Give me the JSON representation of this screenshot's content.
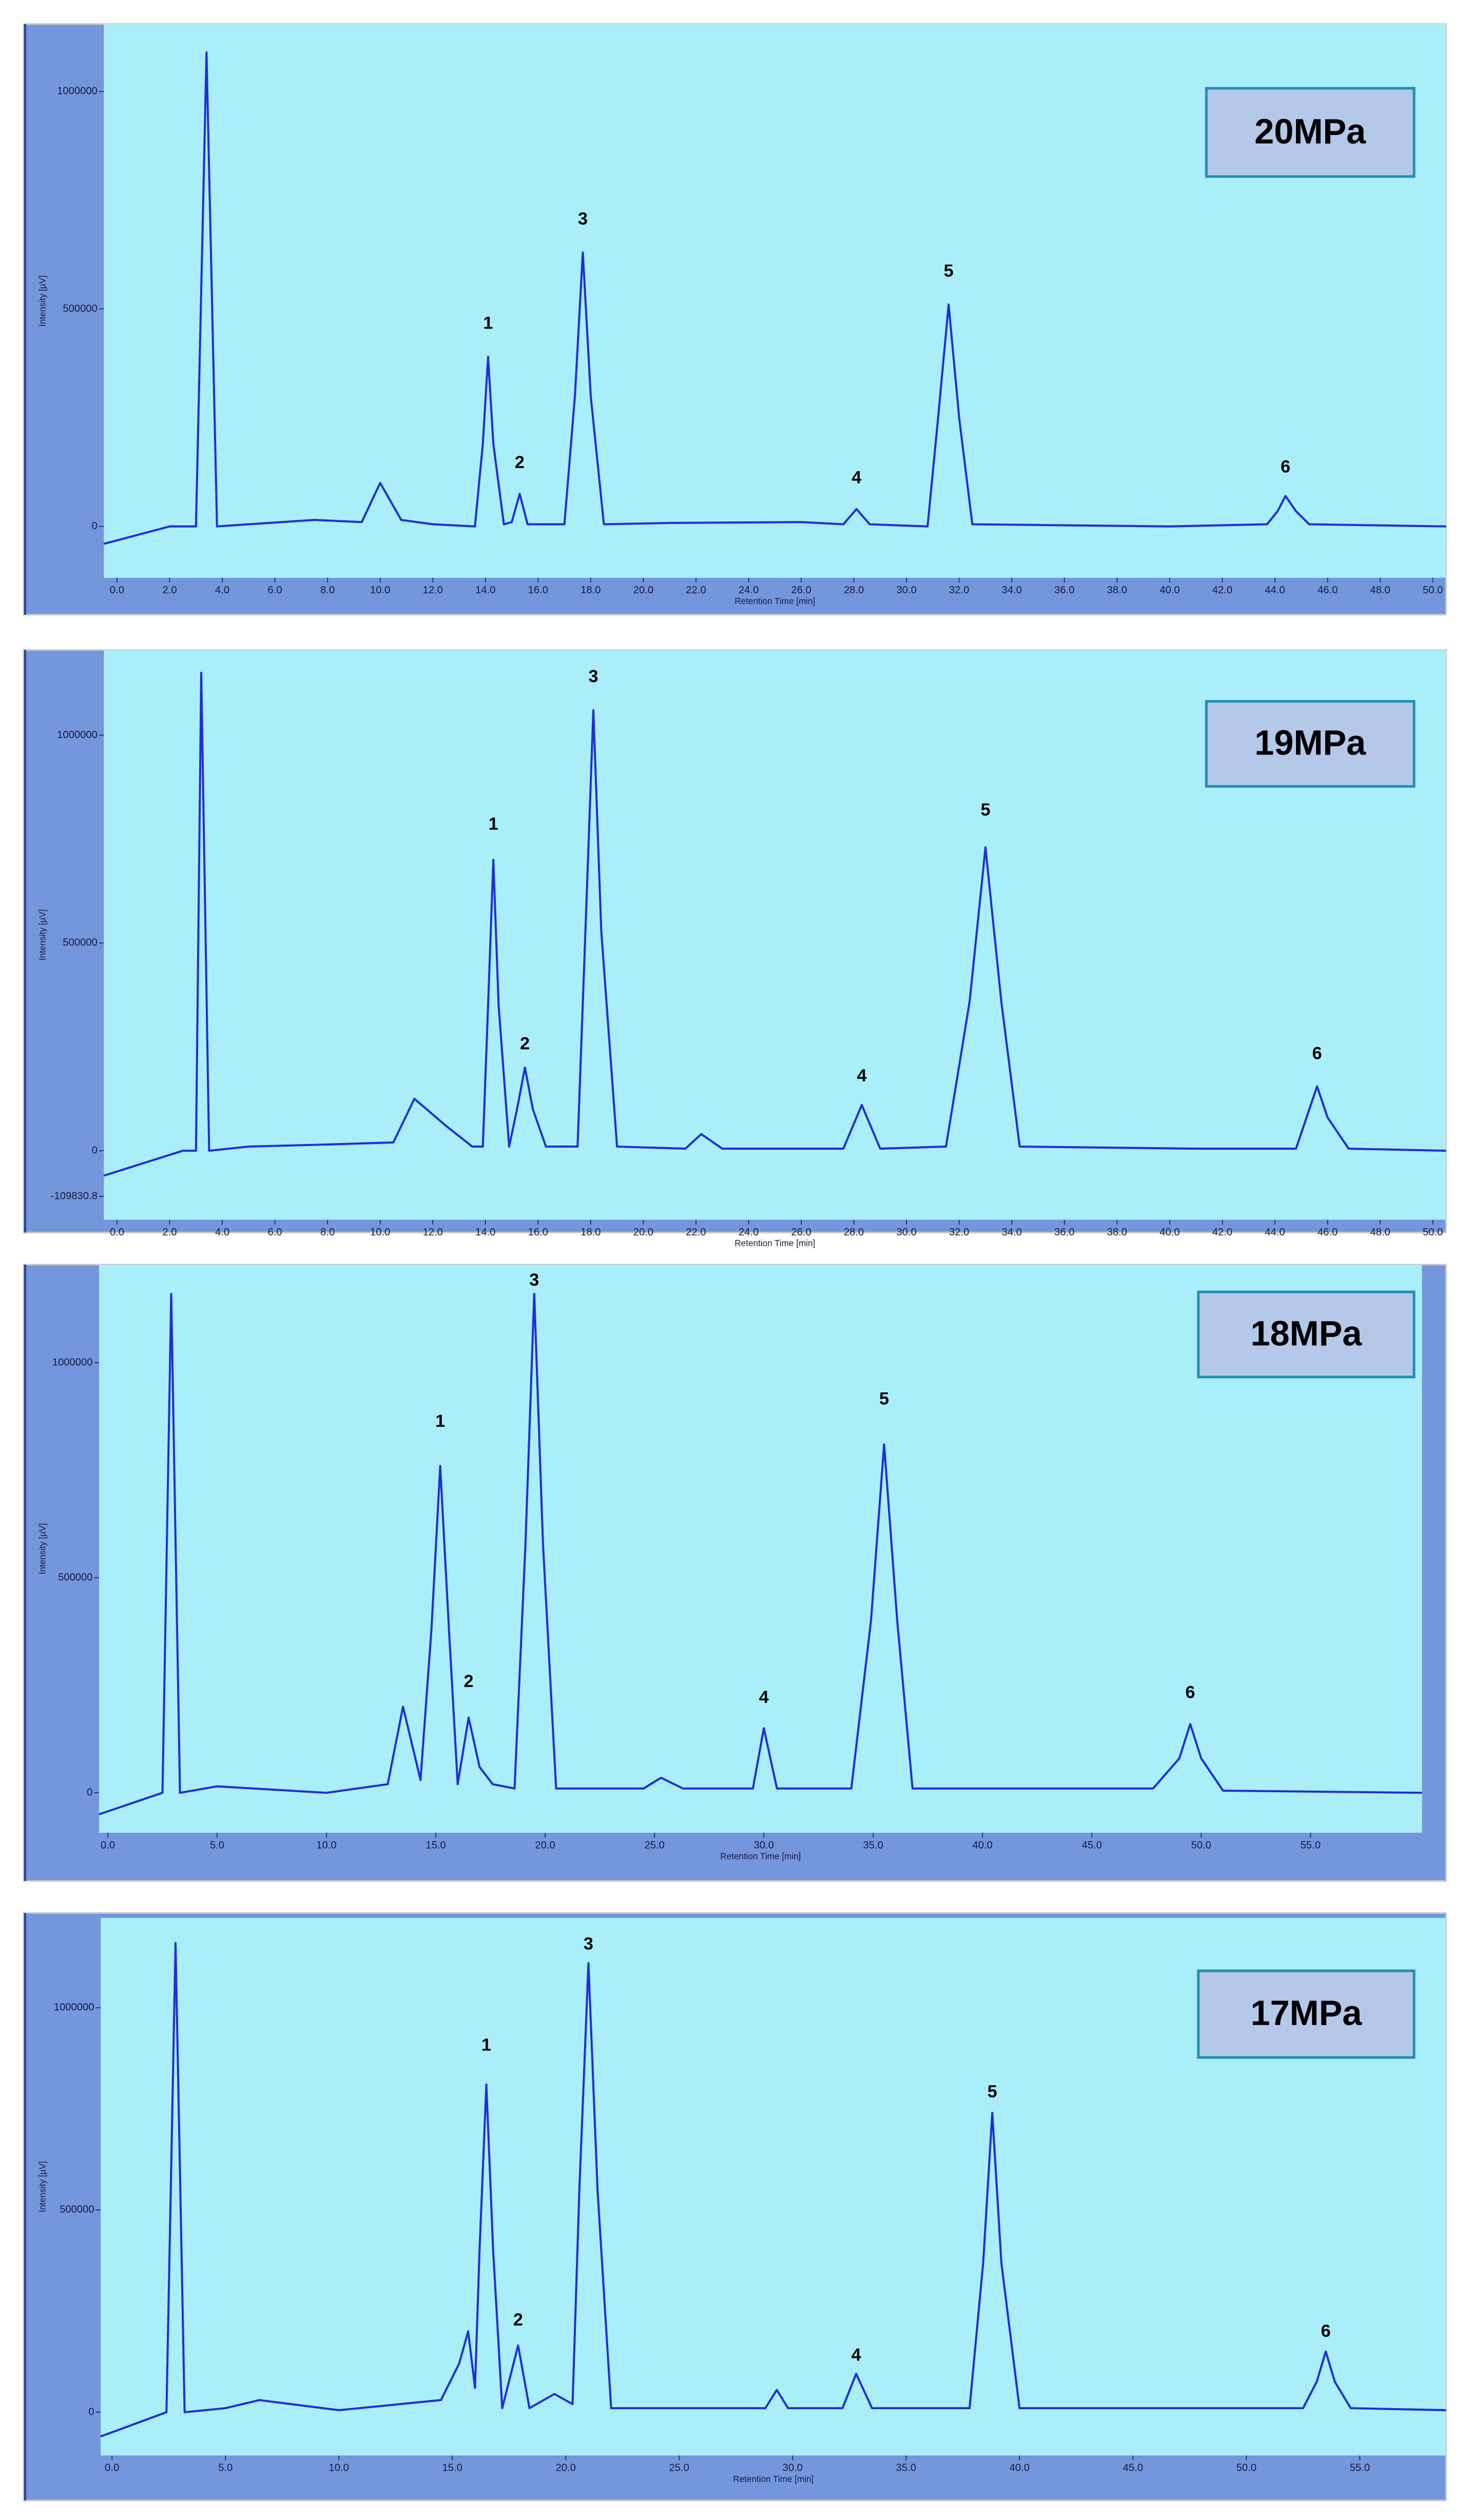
{
  "chart_data": [
    {
      "type": "line",
      "title": "20MPa",
      "xlabel": "Retention Time [min]",
      "ylabel": "Intensity [µV]",
      "color": "#1f2fd6",
      "xlim": [
        -0.5,
        50.5
      ],
      "ylim": [
        -118000,
        1155000
      ],
      "xticks": [
        {
          "value": 0,
          "label": "0.0"
        },
        {
          "value": 2,
          "label": "2.0"
        },
        {
          "value": 4,
          "label": "4.0"
        },
        {
          "value": 6,
          "label": "6.0"
        },
        {
          "value": 8,
          "label": "8.0"
        },
        {
          "value": 10,
          "label": "10.0"
        },
        {
          "value": 12,
          "label": "12.0"
        },
        {
          "value": 14,
          "label": "14.0"
        },
        {
          "value": 16,
          "label": "16.0"
        },
        {
          "value": 18,
          "label": "18.0"
        },
        {
          "value": 20,
          "label": "20.0"
        },
        {
          "value": 22,
          "label": "22.0"
        },
        {
          "value": 24,
          "label": "24.0"
        },
        {
          "value": 26,
          "label": "26.0"
        },
        {
          "value": 28,
          "label": "28.0"
        },
        {
          "value": 30,
          "label": "30.0"
        },
        {
          "value": 32,
          "label": "32.0"
        },
        {
          "value": 34,
          "label": "34.0"
        },
        {
          "value": 36,
          "label": "36.0"
        },
        {
          "value": 38,
          "label": "38.0"
        },
        {
          "value": 40,
          "label": "40.0"
        },
        {
          "value": 42,
          "label": "42.0"
        },
        {
          "value": 44,
          "label": "44.0"
        },
        {
          "value": 46,
          "label": "46.0"
        },
        {
          "value": 48,
          "label": "48.0"
        },
        {
          "value": 50,
          "label": "50.0"
        }
      ],
      "yticks": [
        0,
        500000,
        1000000
      ],
      "x": [
        -0.5,
        2.0,
        3.0,
        3.4,
        3.8,
        5.0,
        7.5,
        9.3,
        10.0,
        10.8,
        12.0,
        13.6,
        13.9,
        14.1,
        14.3,
        14.7,
        15.0,
        15.3,
        15.6,
        17.0,
        17.4,
        17.7,
        18.0,
        18.5,
        21.0,
        26.0,
        27.6,
        28.1,
        28.6,
        30.8,
        31.2,
        31.6,
        32.0,
        32.5,
        40.0,
        43.7,
        44.1,
        44.4,
        44.8,
        45.3,
        50.5
      ],
      "values": [
        -40000,
        0,
        0,
        1090000,
        0,
        5000,
        15000,
        10000,
        100000,
        15000,
        5000,
        0,
        190000,
        390000,
        190000,
        5000,
        10000,
        75000,
        5000,
        5000,
        300000,
        630000,
        300000,
        5000,
        8000,
        10000,
        5000,
        40000,
        5000,
        0,
        250000,
        510000,
        250000,
        5000,
        0,
        5000,
        35000,
        70000,
        35000,
        5000,
        0
      ],
      "annotations": [
        {
          "text": "1",
          "x": 14.1,
          "y": 465000
        },
        {
          "text": "2",
          "x": 15.3,
          "y": 145000
        },
        {
          "text": "3",
          "x": 17.7,
          "y": 705000
        },
        {
          "text": "4",
          "x": 28.1,
          "y": 110000
        },
        {
          "text": "5",
          "x": 31.6,
          "y": 585000
        },
        {
          "text": "6",
          "x": 44.4,
          "y": 135000
        }
      ]
    },
    {
      "type": "line",
      "title": "19MPa",
      "xlabel": "Retention Time [min]",
      "ylabel": "Intensity [µV]",
      "color": "#1f2fd6",
      "xlim": [
        -0.5,
        50.5
      ],
      "ylim": [
        -166000,
        1205000
      ],
      "xticks": [
        {
          "value": 0,
          "label": "0.0"
        },
        {
          "value": 2,
          "label": "2.0"
        },
        {
          "value": 4,
          "label": "4.0"
        },
        {
          "value": 6,
          "label": "6.0"
        },
        {
          "value": 8,
          "label": "8.0"
        },
        {
          "value": 10,
          "label": "10.0"
        },
        {
          "value": 12,
          "label": "12.0"
        },
        {
          "value": 14,
          "label": "14.0"
        },
        {
          "value": 16,
          "label": "16.0"
        },
        {
          "value": 18,
          "label": "18.0"
        },
        {
          "value": 20,
          "label": "20.0"
        },
        {
          "value": 22,
          "label": "22.0"
        },
        {
          "value": 24,
          "label": "24.0"
        },
        {
          "value": 26,
          "label": "26.0"
        },
        {
          "value": 28,
          "label": "28.0"
        },
        {
          "value": 30,
          "label": "30.0"
        },
        {
          "value": 32,
          "label": "32.0"
        },
        {
          "value": 34,
          "label": "34.0"
        },
        {
          "value": 36,
          "label": "36.0"
        },
        {
          "value": 38,
          "label": "38.0"
        },
        {
          "value": 40,
          "label": "40.0"
        },
        {
          "value": 42,
          "label": "42.0"
        },
        {
          "value": 44,
          "label": "44.0"
        },
        {
          "value": 46,
          "label": "46.0"
        },
        {
          "value": 48,
          "label": "48.0"
        },
        {
          "value": 50,
          "label": "50.0"
        }
      ],
      "yticks": [
        -109830.8,
        0,
        500000,
        1000000
      ],
      "x": [
        -0.5,
        2.5,
        3.0,
        3.2,
        3.5,
        5.0,
        8.0,
        10.5,
        11.3,
        12.5,
        13.5,
        13.9,
        14.1,
        14.3,
        14.5,
        14.9,
        15.2,
        15.5,
        15.8,
        16.3,
        17.5,
        17.8,
        18.1,
        18.4,
        19.0,
        21.6,
        22.2,
        23.0,
        27.6,
        28.3,
        29.0,
        31.5,
        32.4,
        33.0,
        33.6,
        34.3,
        41.0,
        44.8,
        45.2,
        45.6,
        46.0,
        46.8,
        50.5
      ],
      "values": [
        -60000,
        0,
        0,
        1150000,
        0,
        10000,
        15000,
        20000,
        125000,
        60000,
        10000,
        10000,
        350000,
        700000,
        350000,
        10000,
        100000,
        200000,
        100000,
        10000,
        10000,
        530000,
        1060000,
        530000,
        10000,
        5000,
        40000,
        5000,
        5000,
        110000,
        5000,
        10000,
        360000,
        730000,
        360000,
        10000,
        5000,
        5000,
        80000,
        155000,
        80000,
        5000,
        0
      ],
      "annotations": [
        {
          "text": "1",
          "x": 14.3,
          "y": 784000
        },
        {
          "text": "2",
          "x": 15.5,
          "y": 255000
        },
        {
          "text": "3",
          "x": 18.1,
          "y": 1139000
        },
        {
          "text": "4",
          "x": 28.3,
          "y": 178000
        },
        {
          "text": "5",
          "x": 33.0,
          "y": 818000
        },
        {
          "text": "6",
          "x": 45.6,
          "y": 232000
        }
      ]
    },
    {
      "type": "line",
      "title": "18MPa",
      "xlabel": "Retention Time [min]",
      "ylabel": "Intensity [µV]",
      "color": "#1f2fd6",
      "xlim": [
        -0.4,
        60.1
      ],
      "ylim": [
        -93000,
        1228000
      ],
      "xticks": [
        {
          "value": 0,
          "label": "0.0"
        },
        {
          "value": 5,
          "label": "5.0"
        },
        {
          "value": 10,
          "label": "10.0"
        },
        {
          "value": 15,
          "label": "15.0"
        },
        {
          "value": 20,
          "label": "20.0"
        },
        {
          "value": 25,
          "label": "25.0"
        },
        {
          "value": 30,
          "label": "30.0"
        },
        {
          "value": 35,
          "label": "35.0"
        },
        {
          "value": 40,
          "label": "40.0"
        },
        {
          "value": 45,
          "label": "45.0"
        },
        {
          "value": 50,
          "label": "50.0"
        },
        {
          "value": 55,
          "label": "55.0"
        }
      ],
      "yticks": [
        0,
        500000,
        1000000
      ],
      "x": [
        -0.4,
        2.5,
        2.9,
        3.3,
        5.0,
        10.0,
        12.8,
        13.5,
        14.3,
        14.8,
        15.2,
        15.6,
        16.0,
        16.5,
        17.0,
        17.6,
        18.6,
        19.1,
        19.5,
        19.9,
        20.5,
        24.5,
        25.3,
        26.3,
        29.5,
        30.0,
        30.6,
        34.0,
        34.9,
        35.5,
        36.1,
        36.8,
        47.8,
        49.0,
        49.5,
        50.0,
        51.0,
        60.1
      ],
      "values": [
        -50000,
        0,
        1160000,
        0,
        15000,
        0,
        20000,
        200000,
        30000,
        380000,
        760000,
        380000,
        20000,
        175000,
        60000,
        20000,
        10000,
        580000,
        1160000,
        580000,
        10000,
        10000,
        35000,
        10000,
        10000,
        150000,
        10000,
        10000,
        400000,
        810000,
        400000,
        10000,
        10000,
        80000,
        160000,
        80000,
        5000,
        0
      ],
      "annotations": [
        {
          "text": "1",
          "x": 15.2,
          "y": 862000
        },
        {
          "text": "2",
          "x": 16.5,
          "y": 257000
        },
        {
          "text": "3",
          "x": 19.5,
          "y": 1190000
        },
        {
          "text": "4",
          "x": 30.0,
          "y": 220000
        },
        {
          "text": "5",
          "x": 35.5,
          "y": 914000
        },
        {
          "text": "6",
          "x": 49.5,
          "y": 231000
        }
      ]
    },
    {
      "type": "line",
      "title": "17MPa",
      "xlabel": "Retention Time [min]",
      "ylabel": "Intensity [µV]",
      "color": "#1f2fd6",
      "xlim": [
        -0.5,
        58.8
      ],
      "ylim": [
        -107000,
        1222000
      ],
      "xticks": [
        {
          "value": 0,
          "label": "0.0"
        },
        {
          "value": 5,
          "label": "5.0"
        },
        {
          "value": 10,
          "label": "10.0"
        },
        {
          "value": 15,
          "label": "15.0"
        },
        {
          "value": 20,
          "label": "20.0"
        },
        {
          "value": 25,
          "label": "25.0"
        },
        {
          "value": 30,
          "label": "30.0"
        },
        {
          "value": 35,
          "label": "35.0"
        },
        {
          "value": 40,
          "label": "40.0"
        },
        {
          "value": 45,
          "label": "45.0"
        },
        {
          "value": 50,
          "label": "50.0"
        },
        {
          "value": 55,
          "label": "55.0"
        }
      ],
      "yticks": [
        0,
        500000,
        1000000
      ],
      "x": [
        -0.5,
        2.4,
        2.8,
        3.2,
        5.0,
        6.5,
        10.0,
        14.5,
        15.3,
        15.7,
        16.0,
        16.2,
        16.5,
        16.8,
        17.2,
        17.9,
        18.4,
        19.5,
        20.3,
        20.6,
        21.0,
        21.4,
        22.0,
        28.8,
        29.3,
        29.8,
        32.2,
        32.8,
        33.5,
        37.8,
        38.4,
        38.8,
        39.2,
        40.0,
        52.5,
        53.1,
        53.5,
        53.9,
        54.6,
        58.8
      ],
      "values": [
        -60000,
        0,
        1160000,
        0,
        10000,
        30000,
        5000,
        30000,
        120000,
        200000,
        60000,
        400000,
        810000,
        400000,
        10000,
        165000,
        10000,
        45000,
        20000,
        550000,
        1110000,
        550000,
        10000,
        10000,
        55000,
        10000,
        10000,
        95000,
        10000,
        10000,
        370000,
        740000,
        370000,
        10000,
        10000,
        75000,
        150000,
        75000,
        10000,
        5000
      ],
      "annotations": [
        {
          "text": "1",
          "x": 16.5,
          "y": 905000
        },
        {
          "text": "2",
          "x": 17.9,
          "y": 226000
        },
        {
          "text": "3",
          "x": 21.0,
          "y": 1155000
        },
        {
          "text": "4",
          "x": 32.8,
          "y": 139000
        },
        {
          "text": "5",
          "x": 38.8,
          "y": 790000
        },
        {
          "text": "6",
          "x": 53.5,
          "y": 198000
        }
      ]
    }
  ]
}
